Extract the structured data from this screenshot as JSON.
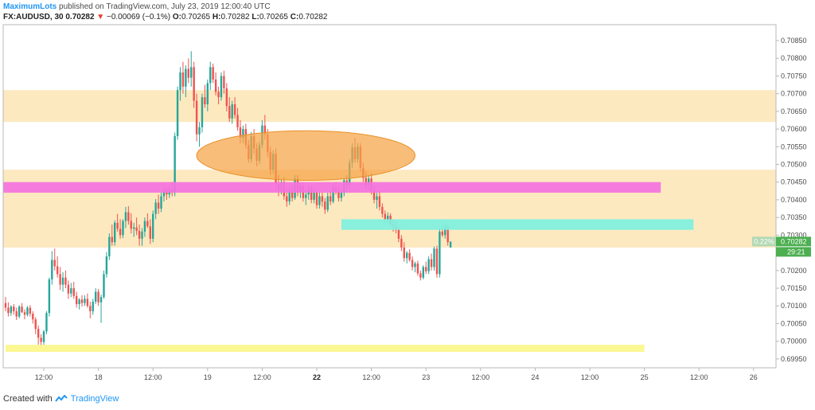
{
  "header": {
    "author": "MaximumLots",
    "published": "published on TradingView.com, July 23, 2019 12:00:40 UTC"
  },
  "symbol": {
    "name": "FX:AUDUSD, 30",
    "last": "0.70282",
    "change": "−0.00069 (−0.1%)",
    "o_label": "O:",
    "o": "0.70265",
    "h_label": "H:",
    "h": "0.70282",
    "l_label": "L:",
    "l": "0.70265",
    "c_label": "C:",
    "c": "0.70282"
  },
  "footer": {
    "created": "Created with",
    "brand": "TradingView"
  },
  "colors": {
    "up": "#26a69a",
    "down": "#ef5350",
    "zone": "#fde9c0",
    "magenta": "#f472e0",
    "cyan": "#7ef0df",
    "yellow": "#fbf68a",
    "ellipse": "#f5a445",
    "price_badge": "#4caf50",
    "pct_badge": "#b2d8b4"
  },
  "chart_data": {
    "type": "candlestick",
    "ylim": [
      0.69925,
      0.70895
    ],
    "y_ticks": [
      "0.70850",
      "0.70800",
      "0.70750",
      "0.70700",
      "0.70650",
      "0.70600",
      "0.70550",
      "0.70500",
      "0.70450",
      "0.70400",
      "0.70350",
      "0.70300",
      "0.70250",
      "0.70200",
      "0.70150",
      "0.70100",
      "0.70050",
      "0.70000",
      "0.69950"
    ],
    "x_ticks": [
      {
        "label": "12:00",
        "slot": 14,
        "bold": false
      },
      {
        "label": "18",
        "slot": 34,
        "bold": false
      },
      {
        "label": "12:00",
        "slot": 54,
        "bold": false
      },
      {
        "label": "19",
        "slot": 74,
        "bold": false
      },
      {
        "label": "12:00",
        "slot": 94,
        "bold": false
      },
      {
        "label": "22",
        "slot": 114,
        "bold": true
      },
      {
        "label": "12:00",
        "slot": 134,
        "bold": false
      },
      {
        "label": "23",
        "slot": 154,
        "bold": false
      },
      {
        "label": "12:00",
        "slot": 174,
        "bold": false
      },
      {
        "label": "24",
        "slot": 194,
        "bold": false
      },
      {
        "label": "12:00",
        "slot": 214,
        "bold": false
      },
      {
        "label": "25",
        "slot": 234,
        "bold": false
      },
      {
        "label": "12:00",
        "slot": 254,
        "bold": false
      },
      {
        "label": "26",
        "slot": 274,
        "bold": false
      }
    ],
    "current_price": {
      "price": 0.70282,
      "label": "0.70282",
      "pct": "0.22%",
      "countdown": "29:21"
    },
    "zones": [
      {
        "name": "upper-resistance-zone",
        "y1": 0.7071,
        "y2": 0.7062,
        "s1": -1,
        "s2": 286
      },
      {
        "name": "support-zone",
        "y1": 0.70485,
        "y2": 0.70265,
        "s1": -1,
        "s2": 286
      }
    ],
    "bands": [
      {
        "name": "magenta-band",
        "y1": 0.7045,
        "y2": 0.7042,
        "s1": -1,
        "s2": 240,
        "color": "magenta"
      },
      {
        "name": "cyan-band",
        "y1": 0.70345,
        "y2": 0.70315,
        "s1": 123,
        "s2": 252,
        "color": "cyan"
      },
      {
        "name": "yellow-band",
        "y1": 0.6999,
        "y2": 0.6997,
        "s1": 0,
        "s2": 234,
        "color": "yellow"
      }
    ],
    "ellipse": {
      "cs": 110,
      "cy": 0.70525,
      "rs": 40,
      "ry": 0.0007
    },
    "candles": [
      [
        0.70108,
        0.70125,
        0.70085,
        0.70095
      ],
      [
        0.70095,
        0.7011,
        0.7007,
        0.7008
      ],
      [
        0.7008,
        0.70102,
        0.70072,
        0.70098
      ],
      [
        0.70098,
        0.70105,
        0.70075,
        0.70085
      ],
      [
        0.70085,
        0.70095,
        0.7006,
        0.7007
      ],
      [
        0.7007,
        0.70102,
        0.70065,
        0.70098
      ],
      [
        0.70098,
        0.70108,
        0.7008,
        0.70082
      ],
      [
        0.70082,
        0.7009,
        0.70062,
        0.70075
      ],
      [
        0.70075,
        0.701,
        0.7007,
        0.70095
      ],
      [
        0.70095,
        0.70102,
        0.7007,
        0.70078
      ],
      [
        0.70078,
        0.70085,
        0.7005,
        0.70062
      ],
      [
        0.70062,
        0.70068,
        0.7002,
        0.70035
      ],
      [
        0.70035,
        0.70045,
        0.6999,
        0.7001
      ],
      [
        0.7001,
        0.7002,
        0.69985,
        0.69998
      ],
      [
        0.69998,
        0.70032,
        0.6999,
        0.70028
      ],
      [
        0.70028,
        0.70085,
        0.7002,
        0.7008
      ],
      [
        0.7008,
        0.7018,
        0.7007,
        0.70175
      ],
      [
        0.70175,
        0.70255,
        0.7016,
        0.7023
      ],
      [
        0.7023,
        0.70262,
        0.702,
        0.70212
      ],
      [
        0.70212,
        0.7024,
        0.7018,
        0.7019
      ],
      [
        0.7019,
        0.7021,
        0.70145,
        0.7016
      ],
      [
        0.7016,
        0.70195,
        0.7014,
        0.7018
      ],
      [
        0.7018,
        0.702,
        0.7015,
        0.7016
      ],
      [
        0.7016,
        0.70172,
        0.7012,
        0.70135
      ],
      [
        0.70135,
        0.70165,
        0.70125,
        0.7015
      ],
      [
        0.7015,
        0.70168,
        0.7012,
        0.70128
      ],
      [
        0.70128,
        0.7014,
        0.70095,
        0.70105
      ],
      [
        0.70105,
        0.70122,
        0.7009,
        0.70118
      ],
      [
        0.70118,
        0.7013,
        0.70098,
        0.70108
      ],
      [
        0.70108,
        0.7013,
        0.701,
        0.7012
      ],
      [
        0.7012,
        0.70135,
        0.70095,
        0.701
      ],
      [
        0.701,
        0.70112,
        0.70065,
        0.70085
      ],
      [
        0.70085,
        0.7012,
        0.70075,
        0.70112
      ],
      [
        0.70112,
        0.7015,
        0.70105,
        0.7014
      ],
      [
        0.7014,
        0.70148,
        0.701,
        0.7011
      ],
      [
        0.7011,
        0.70132,
        0.70052,
        0.70125
      ],
      [
        0.70125,
        0.702,
        0.7012,
        0.7019
      ],
      [
        0.7019,
        0.70252,
        0.7018,
        0.7024
      ],
      [
        0.7024,
        0.70305,
        0.7023,
        0.70295
      ],
      [
        0.70295,
        0.7033,
        0.7027,
        0.7028
      ],
      [
        0.7028,
        0.70342,
        0.7027,
        0.70335
      ],
      [
        0.70335,
        0.7036,
        0.7031,
        0.70318
      ],
      [
        0.70318,
        0.70345,
        0.7029,
        0.703
      ],
      [
        0.703,
        0.70345,
        0.70292,
        0.7034
      ],
      [
        0.7034,
        0.7038,
        0.7032,
        0.70365
      ],
      [
        0.70365,
        0.70382,
        0.7033,
        0.7034
      ],
      [
        0.7034,
        0.70362,
        0.70305,
        0.70318
      ],
      [
        0.70318,
        0.70335,
        0.70295,
        0.70322
      ],
      [
        0.70322,
        0.7035,
        0.703,
        0.70312
      ],
      [
        0.70312,
        0.7033,
        0.7027,
        0.7029
      ],
      [
        0.7029,
        0.7032,
        0.7027,
        0.7031
      ],
      [
        0.7031,
        0.7035,
        0.70295,
        0.7034
      ],
      [
        0.7034,
        0.70362,
        0.7032,
        0.70325
      ],
      [
        0.70325,
        0.70345,
        0.70275,
        0.7029
      ],
      [
        0.7029,
        0.7037,
        0.7028,
        0.7036
      ],
      [
        0.7036,
        0.70402,
        0.70345,
        0.70392
      ],
      [
        0.70392,
        0.70415,
        0.7036,
        0.70375
      ],
      [
        0.70375,
        0.7042,
        0.70365,
        0.7041
      ],
      [
        0.7041,
        0.7044,
        0.70395,
        0.70428
      ],
      [
        0.70428,
        0.70435,
        0.704,
        0.70415
      ],
      [
        0.70415,
        0.7044,
        0.70405,
        0.7043
      ],
      [
        0.7043,
        0.7045,
        0.7041,
        0.7042
      ],
      [
        0.7042,
        0.7059,
        0.7041,
        0.7058
      ],
      [
        0.7058,
        0.7072,
        0.7057,
        0.7071
      ],
      [
        0.7071,
        0.70775,
        0.7068,
        0.7076
      ],
      [
        0.7076,
        0.7079,
        0.707,
        0.7072
      ],
      [
        0.7072,
        0.7078,
        0.7069,
        0.7077
      ],
      [
        0.7077,
        0.708,
        0.7073,
        0.70745
      ],
      [
        0.70745,
        0.7082,
        0.7072,
        0.70775
      ],
      [
        0.70775,
        0.7079,
        0.7066,
        0.7068
      ],
      [
        0.7068,
        0.707,
        0.70565,
        0.70585
      ],
      [
        0.70585,
        0.7062,
        0.7055,
        0.70605
      ],
      [
        0.70605,
        0.707,
        0.7059,
        0.7069
      ],
      [
        0.7069,
        0.70725,
        0.7066,
        0.7067
      ],
      [
        0.7067,
        0.7074,
        0.7065,
        0.7073
      ],
      [
        0.7073,
        0.7079,
        0.7071,
        0.70775
      ],
      [
        0.70775,
        0.70785,
        0.7073,
        0.7074
      ],
      [
        0.7074,
        0.7076,
        0.70695,
        0.70705
      ],
      [
        0.70705,
        0.7072,
        0.7067,
        0.7069
      ],
      [
        0.7069,
        0.7076,
        0.7068,
        0.7075
      ],
      [
        0.7075,
        0.70765,
        0.707,
        0.70715
      ],
      [
        0.70715,
        0.7073,
        0.7065,
        0.70665
      ],
      [
        0.70665,
        0.7069,
        0.7062,
        0.7063
      ],
      [
        0.7063,
        0.7068,
        0.70615,
        0.7067
      ],
      [
        0.7067,
        0.7069,
        0.7063,
        0.7064
      ],
      [
        0.7064,
        0.7066,
        0.70595,
        0.70605
      ],
      [
        0.70605,
        0.70625,
        0.7056,
        0.70575
      ],
      [
        0.70575,
        0.7061,
        0.7056,
        0.706
      ],
      [
        0.706,
        0.70615,
        0.70545,
        0.70555
      ],
      [
        0.70555,
        0.7057,
        0.70505,
        0.70515
      ],
      [
        0.70515,
        0.70592,
        0.70505,
        0.7058
      ],
      [
        0.7058,
        0.706,
        0.7053,
        0.70545
      ],
      [
        0.70545,
        0.7056,
        0.70495,
        0.7051
      ],
      [
        0.7051,
        0.70565,
        0.705,
        0.70555
      ],
      [
        0.70555,
        0.70625,
        0.70545,
        0.7061
      ],
      [
        0.7061,
        0.7064,
        0.7057,
        0.70585
      ],
      [
        0.70585,
        0.706,
        0.7052,
        0.70535
      ],
      [
        0.70535,
        0.7055,
        0.7047,
        0.70485
      ],
      [
        0.70485,
        0.7054,
        0.70475,
        0.7053
      ],
      [
        0.7053,
        0.70545,
        0.7043,
        0.70445
      ],
      [
        0.70445,
        0.7047,
        0.7041,
        0.70425
      ],
      [
        0.70425,
        0.7046,
        0.70415,
        0.7045
      ],
      [
        0.7045,
        0.70465,
        0.704,
        0.7041
      ],
      [
        0.7041,
        0.70435,
        0.7038,
        0.70395
      ],
      [
        0.70395,
        0.7044,
        0.70385,
        0.7043
      ],
      [
        0.7043,
        0.70445,
        0.70395,
        0.70405
      ],
      [
        0.70405,
        0.7047,
        0.704,
        0.7046
      ],
      [
        0.7046,
        0.7047,
        0.7041,
        0.7042
      ],
      [
        0.7042,
        0.7045,
        0.70405,
        0.7044
      ],
      [
        0.7044,
        0.7045,
        0.70395,
        0.70405
      ],
      [
        0.70405,
        0.70425,
        0.70385,
        0.70415
      ],
      [
        0.70415,
        0.7044,
        0.704,
        0.7043
      ],
      [
        0.7043,
        0.7044,
        0.7039,
        0.704
      ],
      [
        0.704,
        0.7043,
        0.7039,
        0.7042
      ],
      [
        0.7042,
        0.70425,
        0.70375,
        0.70385
      ],
      [
        0.70385,
        0.7042,
        0.70375,
        0.7041
      ],
      [
        0.7041,
        0.7042,
        0.7038,
        0.70395
      ],
      [
        0.70395,
        0.70405,
        0.7036,
        0.70372
      ],
      [
        0.70372,
        0.7042,
        0.70365,
        0.7041
      ],
      [
        0.7041,
        0.70425,
        0.70385,
        0.70395
      ],
      [
        0.70395,
        0.70445,
        0.7039,
        0.70435
      ],
      [
        0.70435,
        0.7045,
        0.70415,
        0.70425
      ],
      [
        0.70425,
        0.7044,
        0.70395,
        0.70405
      ],
      [
        0.70405,
        0.7043,
        0.70395,
        0.7042
      ],
      [
        0.7042,
        0.70462,
        0.7041,
        0.70455
      ],
      [
        0.70455,
        0.7047,
        0.70425,
        0.7044
      ],
      [
        0.7044,
        0.70515,
        0.7043,
        0.70505
      ],
      [
        0.70505,
        0.7056,
        0.7049,
        0.70548
      ],
      [
        0.70548,
        0.70575,
        0.70505,
        0.70515
      ],
      [
        0.70515,
        0.7056,
        0.70505,
        0.7055
      ],
      [
        0.7055,
        0.7056,
        0.7048,
        0.7049
      ],
      [
        0.7049,
        0.70505,
        0.7045,
        0.70462
      ],
      [
        0.70462,
        0.7048,
        0.7043,
        0.7044
      ],
      [
        0.7044,
        0.7047,
        0.7043,
        0.7046
      ],
      [
        0.7046,
        0.70475,
        0.70415,
        0.70425
      ],
      [
        0.70425,
        0.7044,
        0.7039,
        0.704
      ],
      [
        0.704,
        0.7042,
        0.70375,
        0.7041
      ],
      [
        0.7041,
        0.70425,
        0.7037,
        0.7038
      ],
      [
        0.7038,
        0.7039,
        0.7035,
        0.7036
      ],
      [
        0.7036,
        0.7037,
        0.70335,
        0.70345
      ],
      [
        0.70345,
        0.70365,
        0.70335,
        0.70355
      ],
      [
        0.70355,
        0.70362,
        0.70325,
        0.70332
      ],
      [
        0.70332,
        0.70345,
        0.7031,
        0.70325
      ],
      [
        0.70325,
        0.7034,
        0.70305,
        0.70315
      ],
      [
        0.70315,
        0.70325,
        0.7028,
        0.7029
      ],
      [
        0.7029,
        0.703,
        0.70255,
        0.70265
      ],
      [
        0.70265,
        0.7028,
        0.70225,
        0.70235
      ],
      [
        0.70235,
        0.70255,
        0.7022,
        0.7025
      ],
      [
        0.7025,
        0.7026,
        0.70225,
        0.7023
      ],
      [
        0.7023,
        0.7024,
        0.702,
        0.7021
      ],
      [
        0.7021,
        0.70225,
        0.70195,
        0.7022
      ],
      [
        0.7022,
        0.70228,
        0.70185,
        0.70192
      ],
      [
        0.70192,
        0.702,
        0.70172,
        0.7018
      ],
      [
        0.7018,
        0.70215,
        0.70175,
        0.7021
      ],
      [
        0.7021,
        0.70225,
        0.7019,
        0.70198
      ],
      [
        0.70198,
        0.7024,
        0.7019,
        0.70232
      ],
      [
        0.70232,
        0.70248,
        0.702,
        0.7021
      ],
      [
        0.7021,
        0.70268,
        0.702,
        0.70262
      ],
      [
        0.70262,
        0.7027,
        0.7018,
        0.7019
      ],
      [
        0.7019,
        0.7032,
        0.7018,
        0.7031
      ],
      [
        0.7031,
        0.7033,
        0.70295,
        0.703
      ],
      [
        0.703,
        0.70335,
        0.7029,
        0.70325
      ],
      [
        0.70325,
        0.7033,
        0.7027,
        0.7028
      ],
      [
        0.70265,
        0.70282,
        0.70265,
        0.70282
      ]
    ]
  }
}
